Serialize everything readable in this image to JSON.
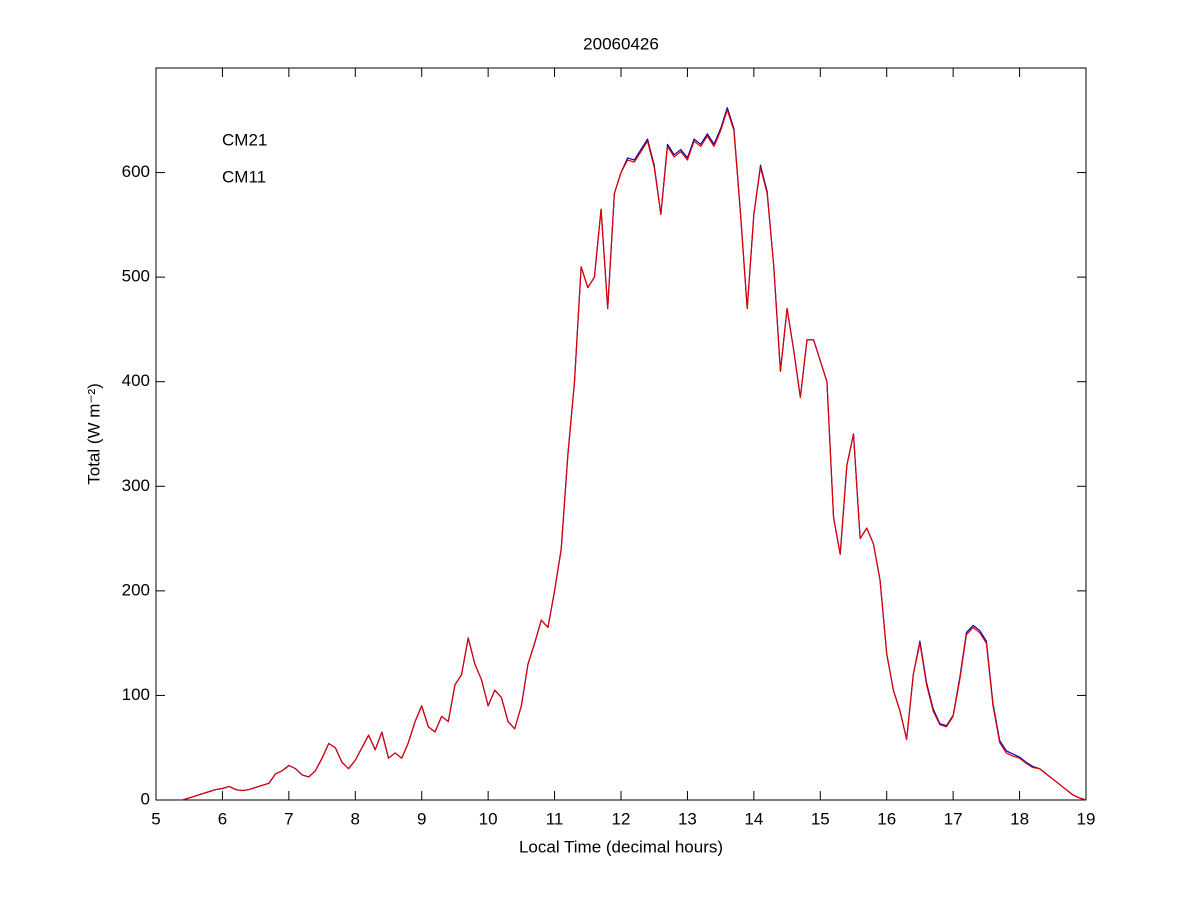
{
  "chart_data": {
    "type": "line",
    "title": "20060426",
    "x_label": "Local Time (decimal hours)",
    "y_label": "Total (W m⁻²)",
    "xlim": [
      5,
      19
    ],
    "xticks": [
      5,
      6,
      7,
      8,
      9,
      10,
      11,
      12,
      13,
      14,
      15,
      16,
      17,
      18,
      19
    ],
    "ylim": [
      0,
      700
    ],
    "yticks": [
      0,
      100,
      200,
      300,
      400,
      500,
      600
    ],
    "grid": false,
    "legend": "upper left",
    "x": [
      5.4,
      5.5,
      5.6,
      5.7,
      5.8,
      5.9,
      6.0,
      6.1,
      6.2,
      6.3,
      6.4,
      6.5,
      6.6,
      6.7,
      6.8,
      6.9,
      7.0,
      7.1,
      7.2,
      7.3,
      7.4,
      7.5,
      7.6,
      7.7,
      7.8,
      7.9,
      8.0,
      8.1,
      8.2,
      8.3,
      8.4,
      8.5,
      8.6,
      8.7,
      8.8,
      8.9,
      9.0,
      9.1,
      9.2,
      9.3,
      9.4,
      9.5,
      9.6,
      9.7,
      9.8,
      9.9,
      10.0,
      10.1,
      10.2,
      10.3,
      10.4,
      10.5,
      10.6,
      10.7,
      10.8,
      10.9,
      11.0,
      11.1,
      11.2,
      11.3,
      11.4,
      11.5,
      11.6,
      11.7,
      11.8,
      11.9,
      12.0,
      12.1,
      12.2,
      12.3,
      12.4,
      12.5,
      12.6,
      12.7,
      12.8,
      12.9,
      13.0,
      13.1,
      13.2,
      13.3,
      13.4,
      13.5,
      13.6,
      13.7,
      13.8,
      13.9,
      14.0,
      14.1,
      14.2,
      14.3,
      14.4,
      14.5,
      14.6,
      14.7,
      14.8,
      14.9,
      15.0,
      15.1,
      15.2,
      15.3,
      15.4,
      15.5,
      15.6,
      15.7,
      15.8,
      15.9,
      16.0,
      16.1,
      16.2,
      16.3,
      16.4,
      16.5,
      16.6,
      16.7,
      16.8,
      16.9,
      17.0,
      17.1,
      17.2,
      17.3,
      17.4,
      17.5,
      17.6,
      17.7,
      17.8,
      17.9,
      18.0,
      18.1,
      18.2,
      18.3,
      18.4,
      18.5,
      18.6,
      18.7,
      18.8,
      18.9,
      19.0
    ],
    "series": [
      {
        "name": "CM21",
        "color": "#0000b4",
        "values": [
          0,
          2,
          4,
          6,
          8,
          10,
          11,
          13,
          10,
          9,
          10,
          12,
          14,
          16,
          25,
          28,
          33,
          30,
          24,
          22,
          28,
          40,
          54,
          50,
          36,
          30,
          38,
          50,
          62,
          48,
          65,
          40,
          45,
          40,
          55,
          75,
          90,
          70,
          65,
          80,
          75,
          110,
          120,
          155,
          130,
          115,
          90,
          105,
          98,
          75,
          68,
          90,
          130,
          150,
          172,
          165,
          200,
          240,
          330,
          400,
          510,
          490,
          500,
          565,
          470,
          580,
          600,
          614,
          612,
          622,
          632,
          607,
          560,
          627,
          617,
          622,
          614,
          632,
          627,
          637,
          627,
          642,
          662,
          642,
          560,
          470,
          560,
          607,
          582,
          510,
          410,
          470,
          430,
          385,
          440,
          440,
          420,
          400,
          270,
          235,
          320,
          350,
          250,
          260,
          245,
          210,
          140,
          105,
          85,
          58,
          120,
          152,
          112,
          87,
          73,
          71,
          81,
          117,
          160,
          167,
          162,
          152,
          92,
          57,
          47,
          44,
          41,
          36,
          32,
          30,
          25,
          20,
          15,
          10,
          5,
          2,
          0
        ]
      },
      {
        "name": "CM11",
        "color": "#e00000",
        "values": [
          0,
          2,
          4,
          6,
          8,
          10,
          11,
          13,
          10,
          9,
          10,
          12,
          14,
          16,
          25,
          28,
          33,
          30,
          24,
          22,
          28,
          40,
          54,
          50,
          36,
          30,
          38,
          50,
          62,
          48,
          65,
          40,
          45,
          40,
          55,
          75,
          90,
          70,
          65,
          80,
          75,
          110,
          120,
          155,
          130,
          115,
          90,
          105,
          98,
          75,
          68,
          90,
          130,
          150,
          172,
          165,
          200,
          240,
          330,
          400,
          510,
          490,
          500,
          565,
          470,
          580,
          600,
          612,
          610,
          620,
          630,
          605,
          560,
          625,
          615,
          620,
          612,
          630,
          625,
          635,
          625,
          640,
          660,
          640,
          560,
          470,
          560,
          605,
          580,
          510,
          410,
          470,
          430,
          385,
          440,
          440,
          420,
          400,
          270,
          235,
          320,
          350,
          250,
          260,
          245,
          210,
          140,
          105,
          85,
          58,
          120,
          150,
          110,
          85,
          72,
          70,
          80,
          115,
          158,
          165,
          160,
          150,
          90,
          55,
          45,
          42,
          40,
          35,
          31,
          30,
          25,
          20,
          15,
          10,
          5,
          2,
          0
        ]
      }
    ]
  }
}
